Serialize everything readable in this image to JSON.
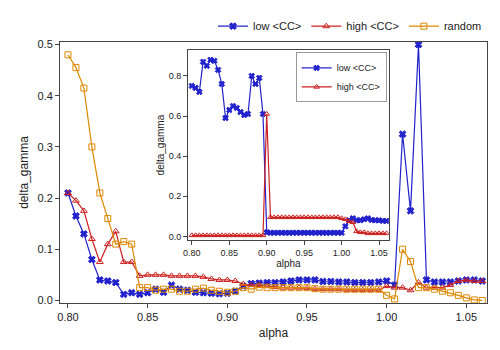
{
  "chart_data": [
    {
      "type": "line",
      "xlabel": "alpha",
      "ylabel": "delta_gamma",
      "xlim": [
        0.795,
        1.063
      ],
      "ylim": [
        -0.005,
        0.505
      ],
      "xticks": [
        {
          "value": 0.8,
          "label": "0.80"
        },
        0.85,
        {
          "value": 0.9,
          "label": "0.90"
        },
        0.95,
        {
          "value": 1,
          "label": "1.00"
        },
        1.05
      ],
      "yticks": [
        {
          "value": 0,
          "label": "0.0"
        },
        0.1,
        0.2,
        0.3,
        0.4,
        0.5
      ],
      "grid": false,
      "legend": "top",
      "x": [
        0.8,
        0.805,
        0.81,
        0.815,
        0.82,
        0.825,
        0.83,
        0.835,
        0.84,
        0.845,
        0.85,
        0.855,
        0.86,
        0.865,
        0.87,
        0.875,
        0.88,
        0.885,
        0.89,
        0.895,
        0.9,
        0.905,
        0.91,
        0.915,
        0.92,
        0.925,
        0.93,
        0.935,
        0.94,
        0.945,
        0.95,
        0.955,
        0.96,
        0.965,
        0.97,
        0.975,
        0.98,
        0.985,
        0.99,
        0.995,
        1.0,
        1.005,
        1.01,
        1.015,
        1.02,
        1.025,
        1.03,
        1.035,
        1.04,
        1.045,
        1.05,
        1.055,
        1.06
      ],
      "series": [
        {
          "name": "low <CC>",
          "color": "#2222cc",
          "marker": "x",
          "values": [
            0.21,
            0.165,
            0.13,
            0.08,
            0.04,
            0.038,
            0.035,
            0.012,
            0.015,
            0.012,
            0.015,
            0.022,
            0.016,
            0.03,
            0.022,
            0.02,
            0.016,
            0.015,
            0.014,
            0.013,
            0.014,
            0.018,
            0.028,
            0.033,
            0.034,
            0.035,
            0.035,
            0.036,
            0.038,
            0.04,
            0.04,
            0.04,
            0.037,
            0.037,
            0.036,
            0.036,
            0.035,
            0.035,
            0.035,
            0.036,
            0.038,
            0.03,
            0.325,
            0.175,
            0.5,
            0.04,
            0.036,
            0.036,
            0.036,
            0.038,
            0.04,
            0.04,
            0.038
          ]
        },
        {
          "name": "high <CC>",
          "color": "#cc2222",
          "marker": "triangle-open",
          "values": [
            0.21,
            0.195,
            0.175,
            0.12,
            0.075,
            0.11,
            0.135,
            0.075,
            0.075,
            0.048,
            0.05,
            0.05,
            0.05,
            0.048,
            0.048,
            0.048,
            0.048,
            0.046,
            0.042,
            0.04,
            0.04,
            0.038,
            0.032,
            0.03,
            0.03,
            0.028,
            0.026,
            0.025,
            0.025,
            0.025,
            0.024,
            0.022,
            0.022,
            0.022,
            0.022,
            0.02,
            0.02,
            0.02,
            0.02,
            0.02,
            0.028,
            0.025,
            0.025,
            0.02,
            0.035,
            0.025,
            0.025,
            0.025,
            0.03,
            0.038,
            0.04,
            0.038,
            0.038
          ]
        },
        {
          "name": "random",
          "color": "#dd8800",
          "marker": "square-open",
          "values": [
            0.48,
            0.455,
            0.415,
            0.3,
            0.21,
            0.16,
            0.11,
            0.115,
            0.11,
            0.025,
            0.025,
            0.02,
            0.022,
            0.022,
            0.018,
            0.018,
            0.022,
            0.024,
            0.02,
            0.018,
            0.016,
            0.018,
            0.025,
            0.022,
            0.026,
            0.025,
            0.025,
            0.025,
            0.025,
            0.025,
            0.025,
            0.023,
            0.022,
            0.022,
            0.022,
            0.022,
            0.022,
            0.022,
            0.022,
            0.022,
            0.01,
            0.003,
            0.1,
            0.076,
            0.025,
            0.025,
            0.022,
            0.018,
            0.015,
            0.01,
            0.005,
            0.001,
            0.0
          ]
        }
      ]
    },
    {
      "type": "line",
      "xlabel": "alpha",
      "ylabel": "delta_gamma",
      "xlim": [
        0.795,
        1.063
      ],
      "ylim": [
        -0.02,
        0.93
      ],
      "xticks": [
        {
          "value": 0.8,
          "label": "0.80"
        },
        0.85,
        {
          "value": 0.9,
          "label": "0.90"
        },
        0.95,
        {
          "value": 1,
          "label": "1.00"
        },
        1.05
      ],
      "yticks": [
        {
          "value": 0,
          "label": "0.0"
        },
        0.2,
        0.4,
        0.6,
        0.8
      ],
      "grid": false,
      "legend": "upper right",
      "x": [
        0.8,
        0.805,
        0.81,
        0.815,
        0.82,
        0.825,
        0.83,
        0.835,
        0.84,
        0.845,
        0.85,
        0.855,
        0.86,
        0.865,
        0.87,
        0.875,
        0.88,
        0.885,
        0.89,
        0.895,
        0.9,
        0.905,
        0.91,
        0.915,
        0.92,
        0.925,
        0.93,
        0.935,
        0.94,
        0.945,
        0.95,
        0.955,
        0.96,
        0.965,
        0.97,
        0.975,
        0.98,
        0.985,
        0.99,
        0.995,
        1.0,
        1.005,
        1.01,
        1.015,
        1.02,
        1.025,
        1.03,
        1.035,
        1.04,
        1.045,
        1.05,
        1.055,
        1.06
      ],
      "series": [
        {
          "name": "low <CC>",
          "color": "#2222cc",
          "marker": "x",
          "values": [
            0.75,
            0.74,
            0.72,
            0.87,
            0.85,
            0.88,
            0.875,
            0.83,
            0.76,
            0.59,
            0.63,
            0.65,
            0.64,
            0.62,
            0.605,
            0.61,
            0.8,
            0.76,
            0.79,
            0.61,
            0.02,
            0.018,
            0.018,
            0.018,
            0.018,
            0.018,
            0.018,
            0.018,
            0.018,
            0.018,
            0.018,
            0.018,
            0.018,
            0.018,
            0.018,
            0.018,
            0.018,
            0.018,
            0.018,
            0.018,
            0.018,
            0.05,
            0.08,
            0.09,
            0.08,
            0.08,
            0.085,
            0.09,
            0.082,
            0.08,
            0.08,
            0.077,
            0.077
          ]
        },
        {
          "name": "high <CC>",
          "color": "#cc2222",
          "marker": "triangle-open",
          "values": [
            0.005,
            0.005,
            0.005,
            0.005,
            0.005,
            0.005,
            0.005,
            0.005,
            0.005,
            0.005,
            0.005,
            0.005,
            0.005,
            0.005,
            0.005,
            0.005,
            0.005,
            0.005,
            0.005,
            0.005,
            0.61,
            0.095,
            0.095,
            0.095,
            0.095,
            0.095,
            0.095,
            0.095,
            0.095,
            0.095,
            0.095,
            0.095,
            0.095,
            0.095,
            0.095,
            0.095,
            0.095,
            0.095,
            0.095,
            0.095,
            0.09,
            0.085,
            0.075,
            0.07,
            0.025,
            0.02,
            0.02,
            0.015,
            0.015,
            0.015,
            0.015,
            0.015,
            0.015
          ]
        }
      ]
    }
  ]
}
